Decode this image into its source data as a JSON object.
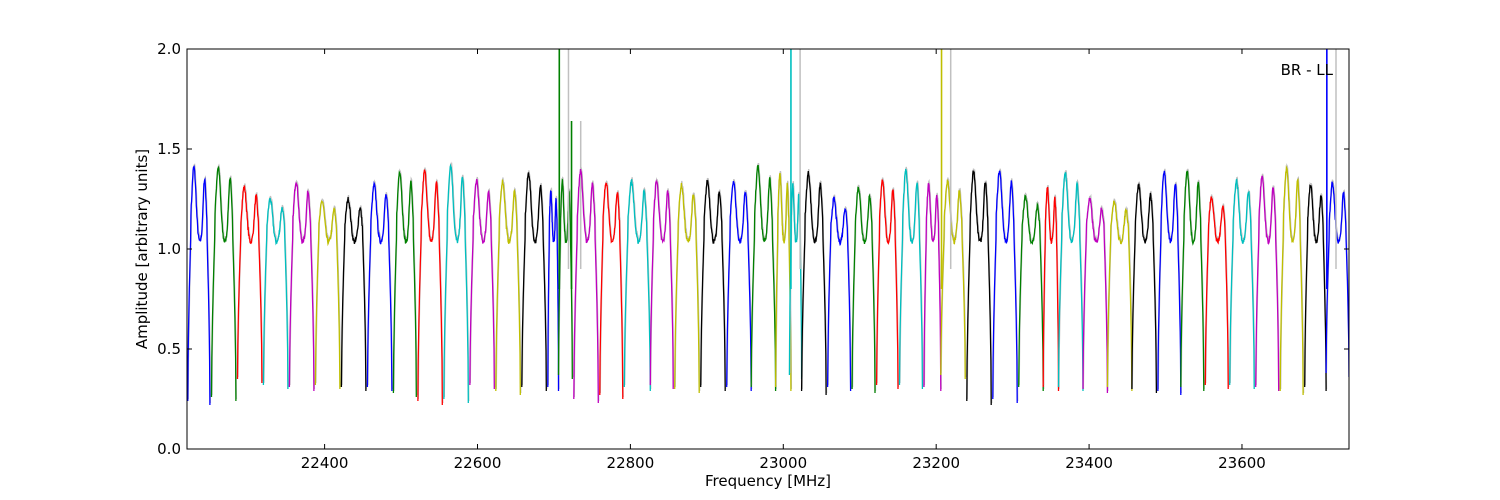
{
  "chart_data": {
    "type": "line",
    "xlabel": "Frequency [MHz]",
    "ylabel": "Amplitude [arbitrary units]",
    "xlim": [
      22220,
      23740
    ],
    "ylim": [
      0.0,
      2.0
    ],
    "x_ticks": [
      22400,
      22600,
      22800,
      23000,
      23200,
      23400,
      23600
    ],
    "y_ticks": [
      0.0,
      0.5,
      1.0,
      1.5,
      2.0
    ],
    "x_tick_labels": [
      "22400",
      "22600",
      "22800",
      "23000",
      "23200",
      "23400",
      "23600"
    ],
    "y_tick_labels": [
      "0.0",
      "0.5",
      "1.0",
      "1.5",
      "2.0"
    ],
    "annotation": "BR - LL",
    "grid": false,
    "legend": "none",
    "colors": [
      "#0000ff",
      "#008000",
      "#ff0000",
      "#00bfbf",
      "#bf00bf",
      "#bfbf00",
      "#000000"
    ],
    "shadow_color": "#c0c0c0",
    "channels": [
      {
        "start": 22221,
        "end": 22250,
        "color": "#0000ff",
        "peak": 1.37,
        "low": 0.22
      },
      {
        "start": 22252,
        "end": 22284,
        "color": "#008000",
        "peak": 1.37,
        "low": 0.24
      },
      {
        "start": 22286,
        "end": 22318,
        "color": "#ff0000",
        "peak": 1.27,
        "low": 0.33
      },
      {
        "start": 22320,
        "end": 22352,
        "color": "#00bfbf",
        "peak": 1.21,
        "low": 0.3
      },
      {
        "start": 22354,
        "end": 22386,
        "color": "#bf00bf",
        "peak": 1.3,
        "low": 0.29
      },
      {
        "start": 22388,
        "end": 22420,
        "color": "#bfbf00",
        "peak": 1.2,
        "low": 0.3
      },
      {
        "start": 22422,
        "end": 22454,
        "color": "#000000",
        "peak": 1.21,
        "low": 0.29
      },
      {
        "start": 22456,
        "end": 22488,
        "color": "#0000ff",
        "peak": 1.28,
        "low": 0.29
      },
      {
        "start": 22490,
        "end": 22520,
        "color": "#008000",
        "peak": 1.35,
        "low": 0.26
      },
      {
        "start": 22522,
        "end": 22554,
        "color": "#ff0000",
        "peak": 1.35,
        "low": 0.22
      },
      {
        "start": 22556,
        "end": 22588,
        "color": "#00bfbf",
        "peak": 1.38,
        "low": 0.23
      },
      {
        "start": 22590,
        "end": 22622,
        "color": "#bf00bf",
        "peak": 1.3,
        "low": 0.3
      },
      {
        "start": 22624,
        "end": 22656,
        "color": "#bfbf00",
        "peak": 1.3,
        "low": 0.27
      },
      {
        "start": 22658,
        "end": 22690,
        "color": "#000000",
        "peak": 1.34,
        "low": 0.29
      },
      {
        "start": 22692,
        "end": 22706,
        "color": "#0000ff",
        "peak": 1.25,
        "low": 0.29
      },
      {
        "start": 22706,
        "end": 22724,
        "color": "#008000",
        "peak": 1.3,
        "low": 0.35,
        "spike": 22707,
        "spike_top": 2.0,
        "spike2": 22723,
        "spike2_top": 1.64
      },
      {
        "start": 22726,
        "end": 22758,
        "color": "#bf00bf",
        "peak": 1.35,
        "low": 0.23
      },
      {
        "start": 22760,
        "end": 22790,
        "color": "#ff0000",
        "peak": 1.3,
        "low": 0.25
      },
      {
        "start": 22792,
        "end": 22826,
        "color": "#00bfbf",
        "peak": 1.3,
        "low": 0.29
      },
      {
        "start": 22826,
        "end": 22856,
        "color": "#bf00bf",
        "peak": 1.3,
        "low": 0.3
      },
      {
        "start": 22858,
        "end": 22890,
        "color": "#bfbf00",
        "peak": 1.28,
        "low": 0.28
      },
      {
        "start": 22892,
        "end": 22924,
        "color": "#000000",
        "peak": 1.3,
        "low": 0.29
      },
      {
        "start": 22926,
        "end": 22958,
        "color": "#0000ff",
        "peak": 1.3,
        "low": 0.29
      },
      {
        "start": 22958,
        "end": 22990,
        "color": "#008000",
        "peak": 1.37,
        "low": 0.29
      },
      {
        "start": 22990,
        "end": 23010,
        "color": "#bfbf00",
        "peak": 1.34,
        "low": 0.29
      },
      {
        "start": 23008,
        "end": 23024,
        "color": "#00bfbf",
        "peak": 1.28,
        "low": 0.35,
        "spike": 23010,
        "spike_top": 2.0
      },
      {
        "start": 23024,
        "end": 23056,
        "color": "#000000",
        "peak": 1.34,
        "low": 0.27
      },
      {
        "start": 23058,
        "end": 23088,
        "color": "#0000ff",
        "peak": 1.21,
        "low": 0.29
      },
      {
        "start": 23090,
        "end": 23120,
        "color": "#008000",
        "peak": 1.27,
        "low": 0.28
      },
      {
        "start": 23122,
        "end": 23150,
        "color": "#ff0000",
        "peak": 1.31,
        "low": 0.3
      },
      {
        "start": 23152,
        "end": 23182,
        "color": "#00bfbf",
        "peak": 1.35,
        "low": 0.3
      },
      {
        "start": 23184,
        "end": 23206,
        "color": "#bf00bf",
        "peak": 1.28,
        "low": 0.29
      },
      {
        "start": 23206,
        "end": 23238,
        "color": "#bfbf00",
        "peak": 1.3,
        "low": 0.35,
        "spike": 23207,
        "spike_top": 2.0
      },
      {
        "start": 23240,
        "end": 23272,
        "color": "#000000",
        "peak": 1.35,
        "low": 0.22
      },
      {
        "start": 23274,
        "end": 23306,
        "color": "#0000ff",
        "peak": 1.35,
        "low": 0.23
      },
      {
        "start": 23308,
        "end": 23340,
        "color": "#008000",
        "peak": 1.22,
        "low": 0.29
      },
      {
        "start": 23340,
        "end": 23360,
        "color": "#ff0000",
        "peak": 1.26,
        "low": 0.29
      },
      {
        "start": 23360,
        "end": 23392,
        "color": "#00bfbf",
        "peak": 1.34,
        "low": 0.29
      },
      {
        "start": 23392,
        "end": 23424,
        "color": "#bf00bf",
        "peak": 1.21,
        "low": 0.28
      },
      {
        "start": 23424,
        "end": 23456,
        "color": "#bfbf00",
        "peak": 1.2,
        "low": 0.29
      },
      {
        "start": 23456,
        "end": 23488,
        "color": "#000000",
        "peak": 1.28,
        "low": 0.28
      },
      {
        "start": 23490,
        "end": 23520,
        "color": "#0000ff",
        "peak": 1.35,
        "low": 0.27
      },
      {
        "start": 23520,
        "end": 23550,
        "color": "#008000",
        "peak": 1.35,
        "low": 0.29
      },
      {
        "start": 23552,
        "end": 23582,
        "color": "#ff0000",
        "peak": 1.22,
        "low": 0.3
      },
      {
        "start": 23584,
        "end": 23616,
        "color": "#00bfbf",
        "peak": 1.3,
        "low": 0.3
      },
      {
        "start": 23618,
        "end": 23648,
        "color": "#bf00bf",
        "peak": 1.32,
        "low": 0.29
      },
      {
        "start": 23650,
        "end": 23680,
        "color": "#bfbf00",
        "peak": 1.36,
        "low": 0.27
      },
      {
        "start": 23682,
        "end": 23710,
        "color": "#000000",
        "peak": 1.28,
        "low": 0.29
      },
      {
        "start": 23710,
        "end": 23740,
        "color": "#0000ff",
        "peak": 1.29,
        "low": 0.36,
        "spike": 23711,
        "spike_top": 2.0
      }
    ]
  }
}
